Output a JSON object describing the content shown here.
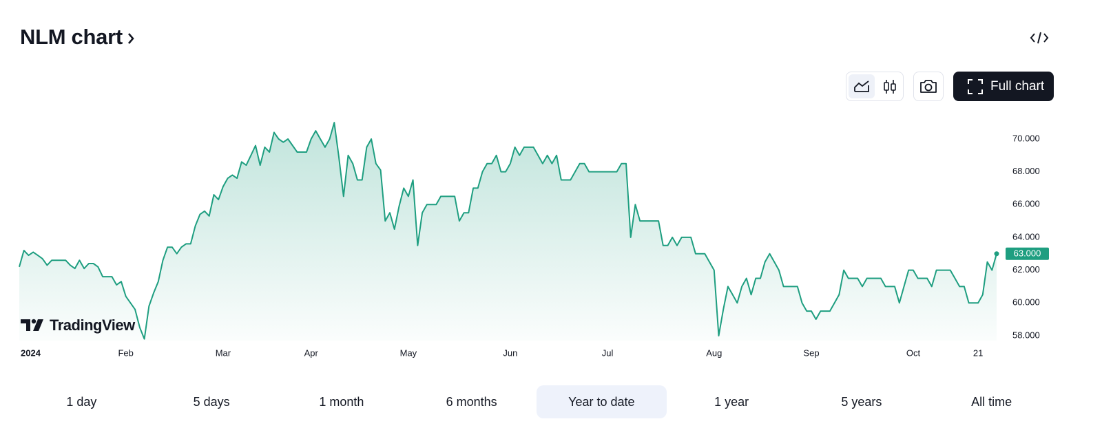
{
  "header": {
    "title": "NLM chart"
  },
  "toolbar": {
    "full_chart": "Full chart"
  },
  "watermark": "TradingView",
  "ranges": [
    "1 day",
    "5 days",
    "1 month",
    "6 months",
    "Year to date",
    "1 year",
    "5 years",
    "All time"
  ],
  "chart_data": {
    "type": "area",
    "color": "#1e9e80",
    "values": [
      62.2,
      63.2,
      62.9,
      63.1,
      62.9,
      62.7,
      62.3,
      62.6,
      62.6,
      62.6,
      62.6,
      62.3,
      62.1,
      62.6,
      62.1,
      62.4,
      62.4,
      62.2,
      61.6,
      61.6,
      61.6,
      61.1,
      61.3,
      60.4,
      60.0,
      59.6,
      58.5,
      57.8,
      59.8,
      60.6,
      61.3,
      62.6,
      63.4,
      63.4,
      63.0,
      63.4,
      63.6,
      63.6,
      64.7,
      65.4,
      65.6,
      65.3,
      66.6,
      66.3,
      67.1,
      67.6,
      67.8,
      67.6,
      68.6,
      68.4,
      69.0,
      69.6,
      68.4,
      69.5,
      69.2,
      70.4,
      70.0,
      69.8,
      70.0,
      69.6,
      69.2,
      69.2,
      69.2,
      70.0,
      70.5,
      70.0,
      69.5,
      70.0,
      71.0,
      68.9,
      66.5,
      69.0,
      68.5,
      67.5,
      67.5,
      69.5,
      70.0,
      68.5,
      68.1,
      65.0,
      65.5,
      64.5,
      65.9,
      67.0,
      66.5,
      67.5,
      63.5,
      65.5,
      66.0,
      66.0,
      66.0,
      66.5,
      66.5,
      66.5,
      66.5,
      65.0,
      65.5,
      65.5,
      67.0,
      67.0,
      68.0,
      68.5,
      68.5,
      69.0,
      68.0,
      68.0,
      68.5,
      69.5,
      69.0,
      69.5,
      69.5,
      69.5,
      69.0,
      68.5,
      69.0,
      68.5,
      69.0,
      67.5,
      67.5,
      67.5,
      68.0,
      68.5,
      68.5,
      68.0,
      68.0,
      68.0,
      68.0,
      68.0,
      68.0,
      68.0,
      68.5,
      68.5,
      64.0,
      66.0,
      65.0,
      65.0,
      65.0,
      65.0,
      65.0,
      63.5,
      63.5,
      64.0,
      63.5,
      64.0,
      64.0,
      64.0,
      63.0,
      63.0,
      63.0,
      62.5,
      62.0,
      58.0,
      59.6,
      61.0,
      60.5,
      60.0,
      61.0,
      61.5,
      60.5,
      61.5,
      61.5,
      62.5,
      63.0,
      62.5,
      62.0,
      61.0,
      61.0,
      61.0,
      61.0,
      60.0,
      59.5,
      59.5,
      59.0,
      59.5,
      59.5,
      59.5,
      60.0,
      60.5,
      62.0,
      61.5,
      61.5,
      61.5,
      61.0,
      61.5,
      61.5,
      61.5,
      61.5,
      61.0,
      61.0,
      61.0,
      60.0,
      61.0,
      62.0,
      62.0,
      61.5,
      61.5,
      61.5,
      61.0,
      62.0,
      62.0,
      62.0,
      62.0,
      61.5,
      61.0,
      61.0,
      60.0,
      60.0,
      60.0,
      60.5,
      62.5,
      62.0,
      63.0
    ],
    "xlim": [
      0,
      211
    ],
    "xticks": [
      {
        "value": 0,
        "label": "2024"
      },
      {
        "value": 23,
        "label": "Feb"
      },
      {
        "value": 44,
        "label": "Mar"
      },
      {
        "value": 63,
        "label": "Apr"
      },
      {
        "value": 84,
        "label": "May"
      },
      {
        "value": 106,
        "label": "Jun"
      },
      {
        "value": 127,
        "label": "Jul"
      },
      {
        "value": 150,
        "label": "Aug"
      },
      {
        "value": 171,
        "label": "Sep"
      },
      {
        "value": 193,
        "label": "Oct"
      },
      {
        "value": 207,
        "label": "21"
      }
    ],
    "ylim": [
      57.7,
      71.3
    ],
    "yticks": [
      {
        "value": 58,
        "label": "58.000"
      },
      {
        "value": 60,
        "label": "60.000"
      },
      {
        "value": 62,
        "label": "62.000"
      },
      {
        "value": 64,
        "label": "64.000"
      },
      {
        "value": 66,
        "label": "66.000"
      },
      {
        "value": 68,
        "label": "68.000"
      },
      {
        "value": 70,
        "label": "70.000"
      }
    ],
    "last_price": {
      "value": 63,
      "label": "63.000"
    }
  }
}
